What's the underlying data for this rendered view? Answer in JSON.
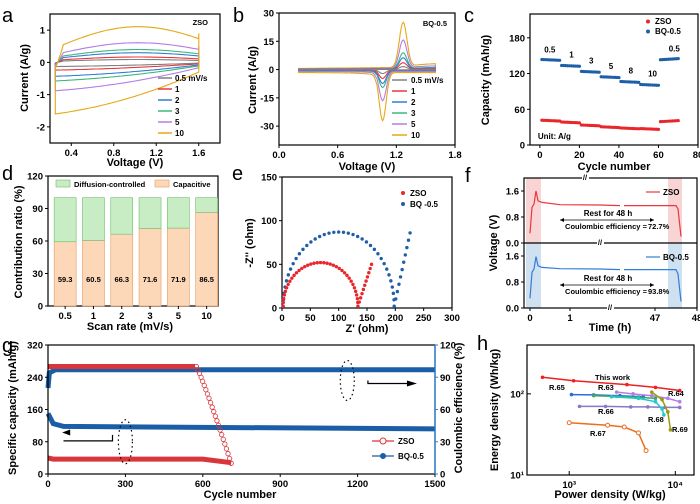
{
  "chart_data": [
    {
      "id": "a",
      "panel_label": "a",
      "type": "line",
      "title": "",
      "annotation": "ZSO",
      "xlabel": "Voltage (V)",
      "ylabel": "Current (A/g)",
      "xlim": [
        0.2,
        1.8
      ],
      "ylim": [
        -2.5,
        1.5
      ],
      "xticks": [
        "0.4",
        "0.8",
        "1.2",
        "1.6"
      ],
      "yticks": [
        "1",
        "0",
        "-1",
        "-2"
      ],
      "legend_title": "",
      "series": [
        {
          "name": "0.5 mV/s",
          "color": "#808080",
          "scale": 0.08
        },
        {
          "name": "1",
          "color": "#e8383d",
          "scale": 0.15
        },
        {
          "name": "2",
          "color": "#2f7fd6",
          "scale": 0.27
        },
        {
          "name": "3",
          "color": "#3cb878",
          "scale": 0.36
        },
        {
          "name": "5",
          "color": "#b57be8",
          "scale": 0.55
        },
        {
          "name": "10",
          "color": "#e6a817",
          "scale": 1.0
        }
      ],
      "peak_anodic_10": 1.07,
      "peak_cathodic_10": -1.6
    },
    {
      "id": "b",
      "panel_label": "b",
      "type": "line",
      "annotation": "BQ-0.5",
      "xlabel": "Voltage (V)",
      "ylabel": "Current (A/g)",
      "xlim": [
        0.0,
        1.8
      ],
      "ylim": [
        -40,
        30
      ],
      "xticks": [
        "0.0",
        "0.6",
        "1.2",
        "1.8"
      ],
      "yticks": [
        "30",
        "15",
        "0",
        "-15",
        "-30"
      ],
      "series": [
        {
          "name": "0.5 mV/s",
          "color": "#808080",
          "anodic_peak": 1.5,
          "cathodic_peak": -2
        },
        {
          "name": "1",
          "color": "#e8383d",
          "anodic_peak": 3.5,
          "cathodic_peak": -4.5
        },
        {
          "name": "2",
          "color": "#2f7fd6",
          "anodic_peak": 6,
          "cathodic_peak": -7
        },
        {
          "name": "3",
          "color": "#3cb878",
          "anodic_peak": 8.5,
          "cathodic_peak": -9
        },
        {
          "name": "5",
          "color": "#b57be8",
          "anodic_peak": 15,
          "cathodic_peak": -15.5
        },
        {
          "name": "10",
          "color": "#e6a817",
          "anodic_peak": 24,
          "cathodic_peak": -25.5
        }
      ]
    },
    {
      "id": "c",
      "panel_label": "c",
      "type": "scatter",
      "xlabel": "Cycle number",
      "ylabel": "Capacity (mAh/g)",
      "xlim": [
        -5,
        80
      ],
      "ylim": [
        0,
        220
      ],
      "xticks": [
        "0",
        "20",
        "40",
        "60",
        "80"
      ],
      "yticks": [
        "0",
        "60",
        "120",
        "180"
      ],
      "annotation": "Unit: A/g",
      "rate_labels": [
        "0.5",
        "1",
        "3",
        "5",
        "8",
        "10",
        "0.5"
      ],
      "series": [
        {
          "name": "ZSO",
          "color": "#e8262b",
          "steps": [
            41,
            38,
            33,
            30,
            28,
            27,
            40
          ]
        },
        {
          "name": "BQ-0.5",
          "color": "#1f5fa8",
          "steps": [
            143,
            133,
            123,
            114,
            106,
            101,
            144
          ]
        }
      ]
    },
    {
      "id": "d",
      "panel_label": "d",
      "type": "bar",
      "xlabel": "Scan rate (mV/s)",
      "ylabel": "Contribution ratio (%)",
      "ylim": [
        0,
        120
      ],
      "yticks": [
        "0",
        "30",
        "60",
        "90",
        "120"
      ],
      "categories": [
        "0.5",
        "1",
        "2",
        "3",
        "5",
        "10"
      ],
      "series": [
        {
          "name": "Capacitive",
          "color": "#fcd8b8",
          "edge": "#e89a60",
          "values": [
            59.3,
            60.5,
            66.3,
            71.6,
            71.9,
            86.5
          ]
        },
        {
          "name": "Diffusion-controlled",
          "color": "#c8ecc4",
          "edge": "#6abf6a",
          "values": [
            40.7,
            39.5,
            33.7,
            28.4,
            28.1,
            13.5
          ]
        }
      ],
      "data_labels": [
        "59.3",
        "60.5",
        "66.3",
        "71.6",
        "71.9",
        "86.5"
      ]
    },
    {
      "id": "e",
      "panel_label": "e",
      "type": "scatter",
      "xlabel": "Z' (ohm)",
      "ylabel": "-Z'' (ohm)",
      "xlim": [
        0,
        300
      ],
      "ylim": [
        0,
        150
      ],
      "xticks": [
        "0",
        "50",
        "100",
        "150",
        "200",
        "250",
        "300"
      ],
      "yticks": [
        "0",
        "50",
        "100",
        "150"
      ],
      "series": [
        {
          "name": "ZSO",
          "color": "#e8262b",
          "semicircle_diameter": 132,
          "semicircle_peak": 50,
          "tail_end": [
            158,
            50
          ]
        },
        {
          "name": "BQ -0.5",
          "color": "#1f5fa8",
          "semicircle_diameter": 196,
          "semicircle_peak": 85,
          "tail_end": [
            226,
            86
          ]
        }
      ]
    },
    {
      "id": "f",
      "panel_label": "f",
      "type": "line",
      "xlabel": "Time (h)",
      "ylabel": "Voltage (V)",
      "xticks": [
        "0",
        "1",
        "47",
        "48"
      ],
      "yticks": [
        "0.0",
        "0.8",
        "1.6"
      ],
      "subplots": [
        {
          "name": "ZSO",
          "color": "#e8383d",
          "shade": "#f9d4d4",
          "rest_text": "Rest for 48 h",
          "ce_label": "Coulombic efficiency = ",
          "ce_value": "72.7%",
          "ce_color": "#e8383d",
          "plateau": 1.15,
          "peak": 1.6
        },
        {
          "name": "BQ-0.5",
          "color": "#2f7fd6",
          "shade": "#cfe0f1",
          "rest_text": "Rest for 48 h",
          "ce_label": "Coulombic efficiency = ",
          "ce_value": "93.8%",
          "ce_color": "#2f7fd6",
          "plateau": 1.18,
          "peak": 1.58
        }
      ]
    },
    {
      "id": "g",
      "panel_label": "g",
      "type": "scatter",
      "xlabel": "Cycle number",
      "ylabel": "Specific capacity (mAh/g)",
      "y2label": "Coulombic efficience (%)",
      "xlim": [
        0,
        1500
      ],
      "ylim": [
        0,
        320
      ],
      "y2lim": [
        0,
        120
      ],
      "xticks": [
        "0",
        "300",
        "600",
        "900",
        "1200",
        "1500"
      ],
      "yticks": [
        "0",
        "80",
        "160",
        "240",
        "320"
      ],
      "y2ticks": [
        "0",
        "30",
        "60",
        "90",
        "120"
      ],
      "series": [
        {
          "name": "ZSO",
          "color": "#d9363b",
          "capacity": 37,
          "ce": 100,
          "fail_cycle": 710
        },
        {
          "name": "BQ-0.5",
          "color": "#1a5ea8",
          "capacity_start": 150,
          "capacity": 118,
          "capacity_end": 112,
          "ce": 97
        }
      ]
    },
    {
      "id": "h",
      "panel_label": "h",
      "type": "line",
      "xlabel": "Power density (W/kg)",
      "ylabel": "Energy density (Wh/kg)",
      "xscale": "log",
      "yscale": "log",
      "xlim": [
        400,
        15000
      ],
      "ylim": [
        10,
        400
      ],
      "xticks": [
        "10³",
        "10⁴"
      ],
      "yticks": [
        "10¹",
        "10²"
      ],
      "series": [
        {
          "name": "This work",
          "color": "#f02020",
          "points": [
            [
              560,
              160
            ],
            [
              1100,
              145
            ],
            [
              3500,
              130
            ],
            [
              6500,
              120
            ],
            [
              11000,
              110
            ]
          ]
        },
        {
          "name": "R.65",
          "color": "#2a6fd8",
          "points": [
            [
              1050,
              98
            ],
            [
              1700,
              97
            ],
            [
              3000,
              95
            ],
            [
              5000,
              92
            ]
          ]
        },
        {
          "name": "R.63",
          "color": "#3aaa60",
          "points": [
            [
              1700,
              95
            ],
            [
              2800,
              93
            ],
            [
              4500,
              91
            ],
            [
              6500,
              88
            ]
          ]
        },
        {
          "name": "R.64",
          "color": "#b57be8",
          "points": [
            [
              2800,
              105
            ],
            [
              4000,
              100
            ],
            [
              6000,
              95
            ],
            [
              8500,
              88
            ],
            [
              11000,
              80
            ]
          ]
        },
        {
          "name": "R.66",
          "color": "#8878c8",
          "points": [
            [
              1250,
              70
            ],
            [
              2200,
              70
            ],
            [
              3800,
              69
            ],
            [
              5500,
              69
            ],
            [
              8000,
              68
            ],
            [
              11000,
              68
            ]
          ]
        },
        {
          "name": "R.68",
          "color": "#20c8d0",
          "points": [
            [
              2500,
              92
            ],
            [
              4500,
              88
            ],
            [
              6500,
              80
            ],
            [
              7500,
              65
            ],
            [
              7800,
              55
            ]
          ]
        },
        {
          "name": "R.69",
          "color": "#9a9a10",
          "points": [
            [
              6000,
              105
            ],
            [
              7500,
              85
            ],
            [
              8500,
              60
            ],
            [
              9000,
              36
            ]
          ]
        },
        {
          "name": "R.67",
          "color": "#e8701e",
          "points": [
            [
              1000,
              44
            ],
            [
              2300,
              41
            ],
            [
              3300,
              39
            ],
            [
              4500,
              33
            ],
            [
              5300,
              20
            ]
          ]
        }
      ]
    }
  ]
}
